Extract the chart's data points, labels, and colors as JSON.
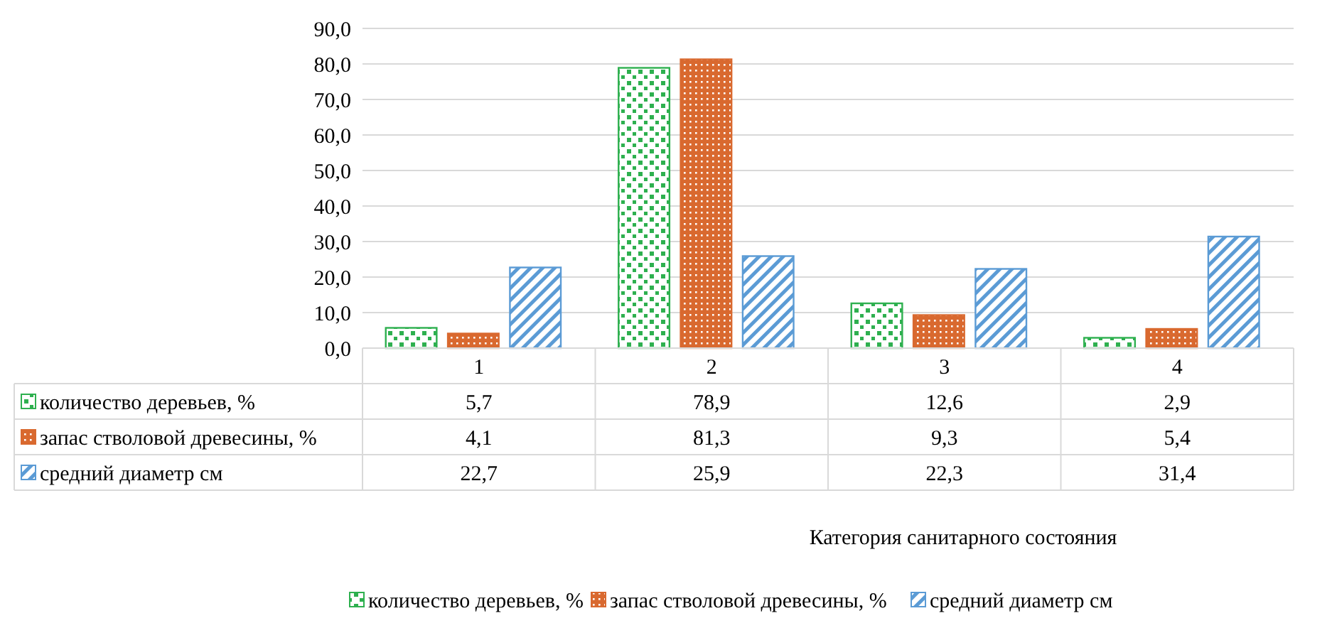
{
  "chart_data": {
    "type": "bar",
    "annotations": [
      "Категория санитарного состояния"
    ],
    "categories": [
      "1",
      "2",
      "3",
      "4"
    ],
    "series": [
      {
        "name": "количество деревьев, %",
        "color": "#2eb04f",
        "values": [
          5.7,
          78.9,
          12.6,
          2.9
        ],
        "value_labels": [
          "5,7",
          "78,9",
          "12,6",
          "2,9"
        ]
      },
      {
        "name": "запас стволовой древесины, %",
        "color": "#d9692f",
        "values": [
          4.1,
          81.3,
          9.3,
          5.4
        ],
        "value_labels": [
          "4,1",
          "81,3",
          "9,3",
          "5,4"
        ]
      },
      {
        "name": "средний диаметр см",
        "color": "#5b9bd5",
        "values": [
          22.7,
          25.9,
          22.3,
          31.4
        ],
        "value_labels": [
          "22,7",
          "25,9",
          "22,3",
          "31,4"
        ]
      }
    ],
    "ylim": [
      0,
      90
    ],
    "yticks": [
      {
        "value": 0,
        "label": "0,0"
      },
      {
        "value": 10,
        "label": "10,0"
      },
      {
        "value": 20,
        "label": "20,0"
      },
      {
        "value": 30,
        "label": "30,0"
      },
      {
        "value": 40,
        "label": "40,0"
      },
      {
        "value": 50,
        "label": "50,0"
      },
      {
        "value": 60,
        "label": "60,0"
      },
      {
        "value": 70,
        "label": "70,0"
      },
      {
        "value": 80,
        "label": "80,0"
      },
      {
        "value": 90,
        "label": "90,0"
      }
    ],
    "grid": "y",
    "legend": "bottom"
  }
}
